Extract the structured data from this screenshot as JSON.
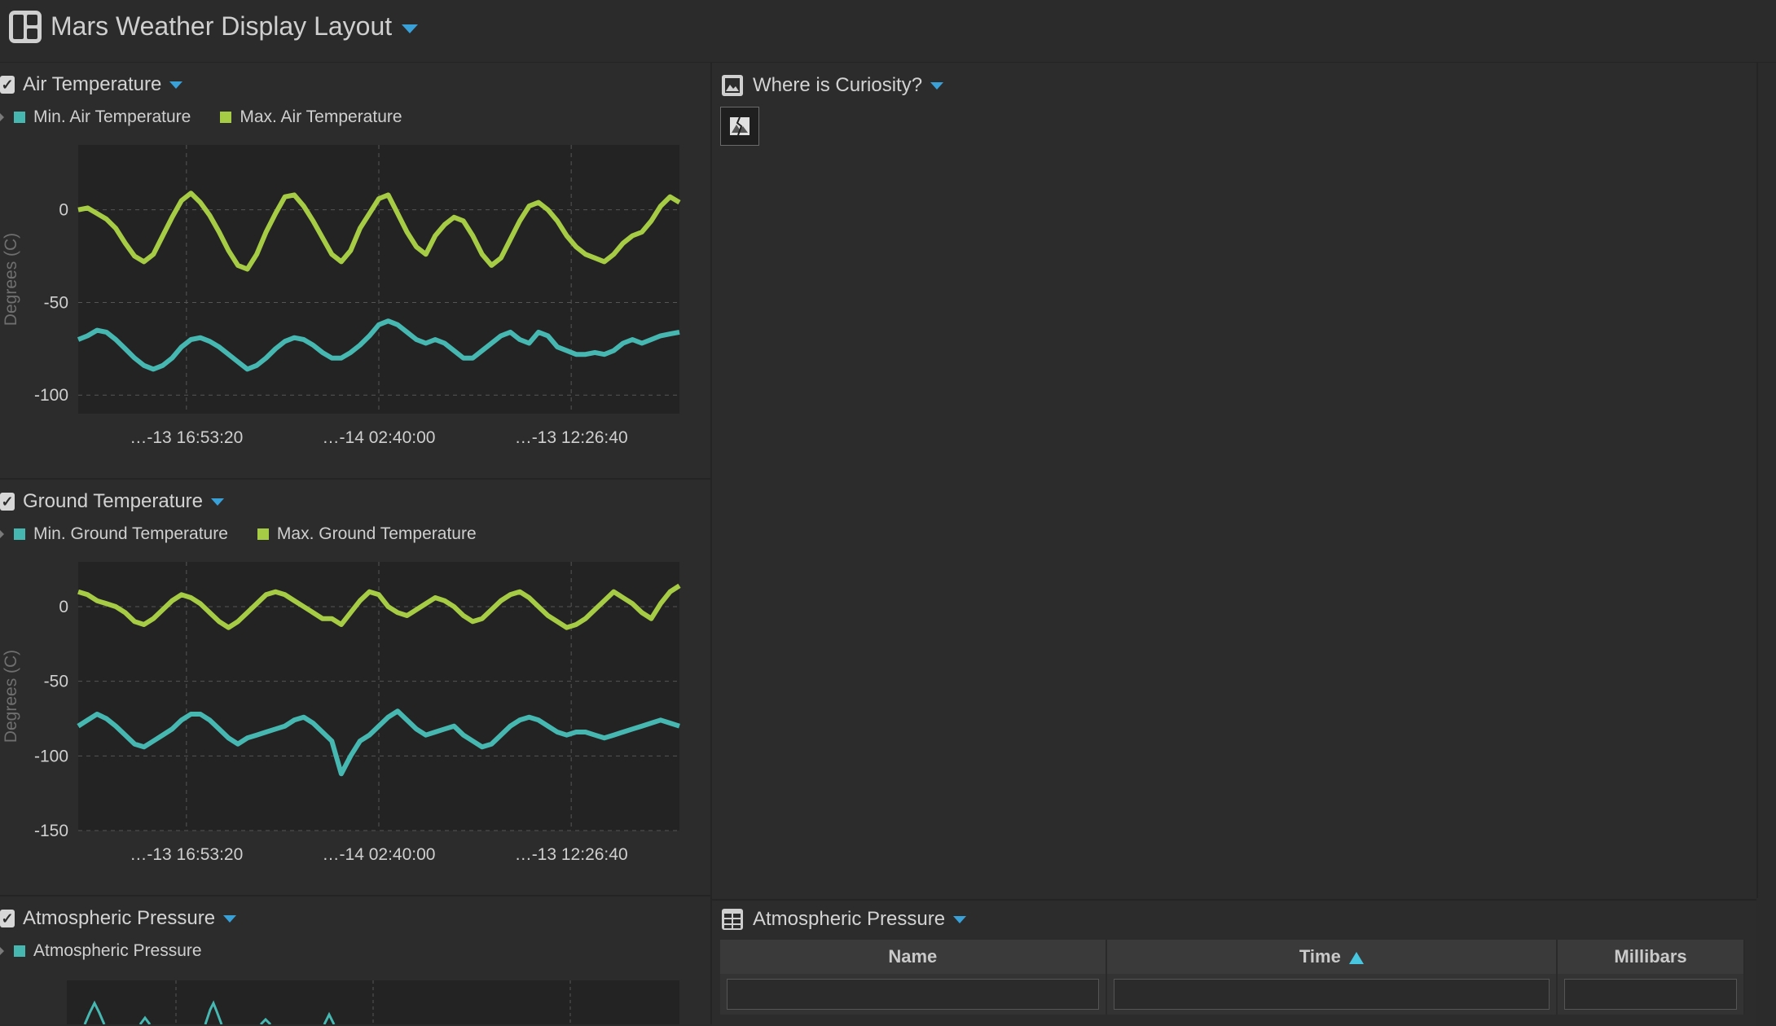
{
  "app": {
    "title": "Mars Weather Display Layout"
  },
  "air": {
    "title": "Air Temperature",
    "legend": {
      "min": "Min. Air Temperature",
      "max": "Max. Air Temperature"
    },
    "ylabel": "Degrees (C)",
    "yticks": [
      "0",
      "-50",
      "-100"
    ],
    "xticks": [
      "…-13 16:53:20",
      "…-14 02:40:00",
      "…-13 12:26:40"
    ]
  },
  "ground": {
    "title": "Ground Temperature",
    "legend": {
      "min": "Min. Ground Temperature",
      "max": "Max. Ground Temperature"
    },
    "ylabel": "Degrees (C)",
    "yticks": [
      "0",
      "-50",
      "-100",
      "-150"
    ],
    "xticks": [
      "…-13 16:53:20",
      "…-14 02:40:00",
      "…-13 12:26:40"
    ]
  },
  "pressure": {
    "title": "Atmospheric Pressure",
    "legend": {
      "series": "Atmospheric Pressure"
    }
  },
  "curiosity": {
    "title": "Where is Curiosity?"
  },
  "table": {
    "title": "Atmospheric Pressure",
    "columns": [
      "Name",
      "Time",
      "Millibars"
    ],
    "sort_column": "Time",
    "sort_direction": "ascending"
  },
  "colors": {
    "accent": "#3aa0d8",
    "min_series": "#46b7b1",
    "max_series": "#a6cc45"
  },
  "chart_data": [
    {
      "type": "line",
      "title": "Air Temperature",
      "ylabel": "Degrees (C)",
      "ylim": [
        -110,
        35
      ],
      "x_tick_labels": [
        "…-13 16:53:20",
        "…-14 02:40:00",
        "…-13 12:26:40"
      ],
      "x": [
        0,
        1,
        2,
        3,
        4,
        5,
        6,
        7,
        8,
        9,
        10,
        11,
        12,
        13,
        14,
        15,
        16,
        17,
        18,
        19,
        20,
        21,
        22,
        23,
        24,
        25,
        26,
        27,
        28,
        29,
        30,
        31,
        32,
        33,
        34,
        35,
        36,
        37,
        38,
        39,
        40,
        41,
        42,
        43,
        44,
        45,
        46,
        47,
        48,
        49,
        50,
        51,
        52,
        53,
        54,
        55,
        56,
        57,
        58,
        59,
        60,
        61,
        62,
        63,
        64
      ],
      "series": [
        {
          "name": "Min. Air Temperature",
          "values": [
            -70,
            -68,
            -65,
            -66,
            -70,
            -75,
            -80,
            -84,
            -86,
            -84,
            -80,
            -74,
            -70,
            -69,
            -71,
            -74,
            -78,
            -82,
            -86,
            -84,
            -80,
            -75,
            -71,
            -69,
            -70,
            -73,
            -77,
            -80,
            -80,
            -77,
            -73,
            -68,
            -62,
            -60,
            -62,
            -66,
            -70,
            -72,
            -70,
            -72,
            -76,
            -80,
            -80,
            -76,
            -72,
            -68,
            -66,
            -70,
            -72,
            -66,
            -68,
            -74,
            -76,
            -78,
            -78,
            -77,
            -78,
            -76,
            -72,
            -70,
            -72,
            -70,
            -68,
            -67,
            -66
          ]
        },
        {
          "name": "Max. Air Temperature",
          "values": [
            0,
            1,
            -2,
            -5,
            -10,
            -18,
            -25,
            -28,
            -24,
            -14,
            -4,
            5,
            9,
            4,
            -3,
            -12,
            -22,
            -30,
            -32,
            -24,
            -12,
            -2,
            7,
            8,
            2,
            -6,
            -15,
            -24,
            -28,
            -22,
            -10,
            -2,
            6,
            8,
            -2,
            -12,
            -20,
            -24,
            -14,
            -8,
            -4,
            -6,
            -14,
            -24,
            -30,
            -26,
            -16,
            -6,
            2,
            4,
            0,
            -6,
            -14,
            -20,
            -24,
            -26,
            -28,
            -24,
            -18,
            -14,
            -12,
            -6,
            2,
            7,
            4
          ]
        }
      ]
    },
    {
      "type": "line",
      "title": "Ground Temperature",
      "ylabel": "Degrees (C)",
      "ylim": [
        -150,
        30
      ],
      "x_tick_labels": [
        "…-13 16:53:20",
        "…-14 02:40:00",
        "…-13 12:26:40"
      ],
      "x": [
        0,
        1,
        2,
        3,
        4,
        5,
        6,
        7,
        8,
        9,
        10,
        11,
        12,
        13,
        14,
        15,
        16,
        17,
        18,
        19,
        20,
        21,
        22,
        23,
        24,
        25,
        26,
        27,
        28,
        29,
        30,
        31,
        32,
        33,
        34,
        35,
        36,
        37,
        38,
        39,
        40,
        41,
        42,
        43,
        44,
        45,
        46,
        47,
        48,
        49,
        50,
        51,
        52,
        53,
        54,
        55,
        56,
        57,
        58,
        59,
        60,
        61,
        62,
        63,
        64
      ],
      "series": [
        {
          "name": "Min. Ground Temperature",
          "values": [
            -80,
            -76,
            -72,
            -75,
            -80,
            -86,
            -92,
            -94,
            -90,
            -86,
            -82,
            -76,
            -72,
            -72,
            -76,
            -82,
            -88,
            -92,
            -88,
            -86,
            -84,
            -82,
            -80,
            -76,
            -74,
            -78,
            -84,
            -90,
            -112,
            -100,
            -90,
            -86,
            -80,
            -74,
            -70,
            -76,
            -82,
            -86,
            -84,
            -82,
            -80,
            -86,
            -90,
            -94,
            -92,
            -86,
            -80,
            -76,
            -74,
            -76,
            -80,
            -84,
            -86,
            -84,
            -84,
            -86,
            -88,
            -86,
            -84,
            -82,
            -80,
            -78,
            -76,
            -78,
            -80
          ]
        },
        {
          "name": "Max. Ground Temperature",
          "values": [
            10,
            8,
            4,
            2,
            0,
            -4,
            -10,
            -12,
            -8,
            -2,
            4,
            8,
            6,
            2,
            -4,
            -10,
            -14,
            -10,
            -4,
            2,
            8,
            10,
            8,
            4,
            0,
            -4,
            -8,
            -8,
            -12,
            -4,
            4,
            10,
            8,
            0,
            -4,
            -6,
            -2,
            2,
            6,
            4,
            0,
            -6,
            -10,
            -8,
            -2,
            4,
            8,
            10,
            6,
            0,
            -6,
            -10,
            -14,
            -12,
            -8,
            -2,
            4,
            10,
            6,
            2,
            -4,
            -8,
            2,
            10,
            14
          ]
        }
      ]
    }
  ]
}
